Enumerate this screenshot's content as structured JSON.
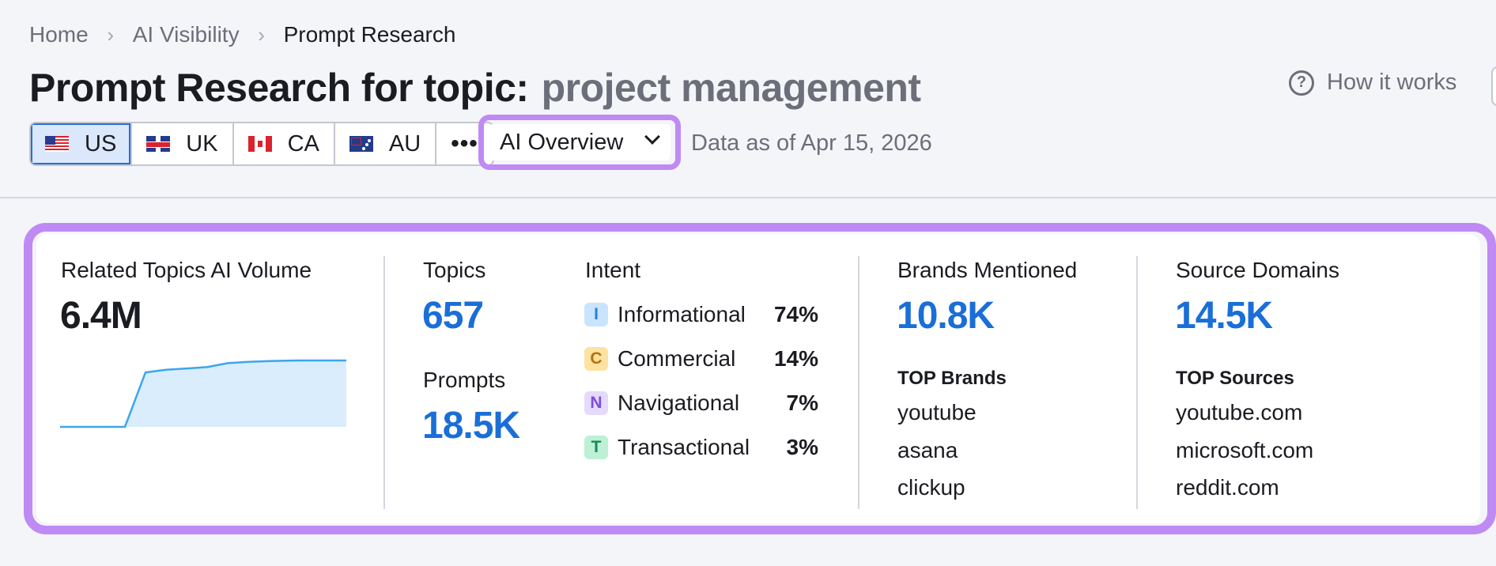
{
  "breadcrumb": {
    "home": "Home",
    "ai_visibility": "AI Visibility",
    "current": "Prompt Research"
  },
  "header": {
    "title_prefix": "Prompt Research for topic:",
    "topic": "project management",
    "how_it_works": "How it works"
  },
  "databases": {
    "items": [
      {
        "code": "US",
        "flag": "us-flag-icon",
        "selected": true
      },
      {
        "code": "UK",
        "flag": "uk-flag-icon",
        "selected": false
      },
      {
        "code": "CA",
        "flag": "ca-flag-icon",
        "selected": false
      },
      {
        "code": "AU",
        "flag": "au-flag-icon",
        "selected": false
      }
    ],
    "more_label": "•••"
  },
  "source_select": {
    "value": "AI Overview"
  },
  "data_as_of": "Data as of Apr 15, 2026",
  "volume": {
    "label": "Related Topics AI Volume",
    "value": "6.4M",
    "trend": [
      0,
      0,
      0,
      0,
      0.82,
      0.86,
      0.88,
      0.9,
      0.96,
      0.98,
      0.99,
      1.0,
      1.0
    ]
  },
  "topics": {
    "label": "Topics",
    "value": "657"
  },
  "prompts": {
    "label": "Prompts",
    "value": "18.5K"
  },
  "intent": {
    "label": "Intent",
    "items": [
      {
        "badge": "I",
        "name": "Informational",
        "pct": "74%",
        "bg": "#c9e5fd",
        "fg": "#2b7bdb"
      },
      {
        "badge": "C",
        "name": "Commercial",
        "pct": "14%",
        "bg": "#fde2a2",
        "fg": "#b5720a"
      },
      {
        "badge": "N",
        "name": "Navigational",
        "pct": "7%",
        "bg": "#e5dafd",
        "fg": "#7d4de0"
      },
      {
        "badge": "T",
        "name": "Transactional",
        "pct": "3%",
        "bg": "#bdf0d6",
        "fg": "#1a8a55"
      }
    ]
  },
  "brands": {
    "label": "Brands Mentioned",
    "value": "10.8K",
    "top_label": "TOP Brands",
    "top": [
      "youtube",
      "asana",
      "clickup"
    ]
  },
  "sources": {
    "label": "Source Domains",
    "value": "14.5K",
    "top_label": "TOP Sources",
    "top": [
      "youtube.com",
      "microsoft.com",
      "reddit.com"
    ]
  },
  "colors": {
    "accent_blue": "#1a6ed8",
    "highlight_ring": "#c08af5",
    "spark_line": "#3ca5ee",
    "spark_fill": "#d9edfc"
  }
}
